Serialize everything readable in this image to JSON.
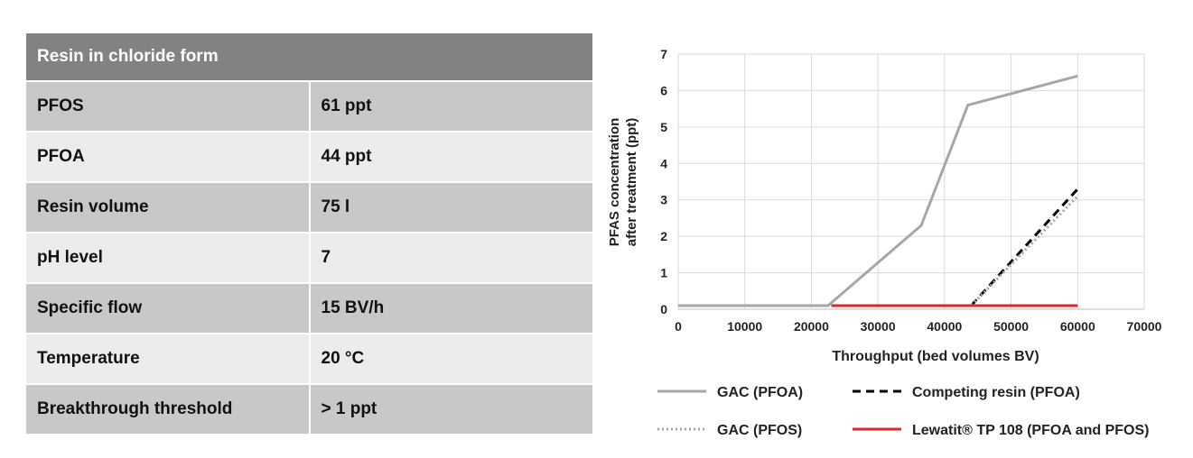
{
  "table": {
    "header": "Resin in chloride form",
    "rows": [
      {
        "label": "PFOS",
        "value": "61 ppt"
      },
      {
        "label": "PFOA",
        "value": "44 ppt"
      },
      {
        "label": "Resin volume",
        "value": "75 l"
      },
      {
        "label": "pH level",
        "value": "7"
      },
      {
        "label": "Specific flow",
        "value": "15 BV/h"
      },
      {
        "label": "Temperature",
        "value": "20 °C"
      },
      {
        "label": "Breakthrough threshold",
        "value": "> 1 ppt"
      }
    ]
  },
  "chart_data": {
    "type": "line",
    "xlabel": "Throughput (bed volumes BV)",
    "ylabel_line1": "PFAS concentration",
    "ylabel_line2": "after treatment (ppt)",
    "xlim": [
      0,
      70000
    ],
    "ylim": [
      0,
      7
    ],
    "xticks": [
      "0",
      "10000",
      "20000",
      "30000",
      "40000",
      "50000",
      "60000",
      "70000"
    ],
    "yticks": [
      "0",
      "1",
      "2",
      "3",
      "4",
      "5",
      "6",
      "7"
    ],
    "grid": true,
    "legend_position": "bottom",
    "series": [
      {
        "name": "GAC (PFOA)",
        "color": "#a6a6a6",
        "style": "solid",
        "points": [
          [
            0,
            0.1
          ],
          [
            22500,
            0.1
          ],
          [
            36500,
            2.3
          ],
          [
            43500,
            5.6
          ],
          [
            60000,
            6.4
          ]
        ]
      },
      {
        "name": "Competing resin (PFOA)",
        "color": "#000000",
        "style": "dashed",
        "points": [
          [
            44000,
            0.1
          ],
          [
            60000,
            3.3
          ]
        ]
      },
      {
        "name": "GAC (PFOS)",
        "color": "#a6a6a6",
        "style": "dotted",
        "points": [
          [
            0,
            0.1
          ],
          [
            44000,
            0.1
          ],
          [
            60000,
            3.1
          ]
        ]
      },
      {
        "name": "Lewatit® TP 108 (PFOA and PFOS)",
        "color": "#e0262a",
        "style": "solid",
        "points": [
          [
            23000,
            0.1
          ],
          [
            60000,
            0.1
          ]
        ]
      }
    ]
  }
}
